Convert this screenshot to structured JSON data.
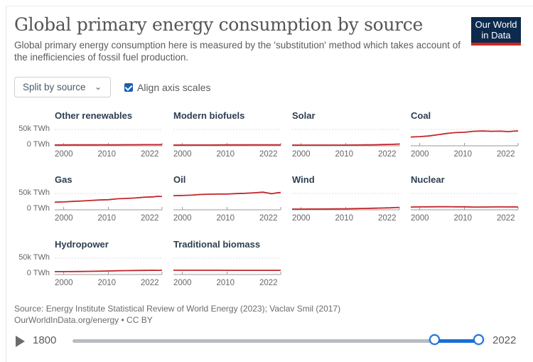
{
  "header": {
    "title": "Global primary energy consumption by source",
    "subtitle": "Global primary energy consumption here is measured by the 'substitution' method which takes account of the inefficiencies of fossil fuel production.",
    "logo_line1": "Our World",
    "logo_line2": "in Data"
  },
  "controls": {
    "split_select": "Split by source",
    "align_label": "Align axis scales",
    "align_checked": true
  },
  "footer": {
    "source": "Source: Energy Institute Statistical Review of World Energy (2023); Vaclav Smil (2017)",
    "license": "OurWorldInData.org/energy • CC BY"
  },
  "timeline": {
    "start_label": "1800",
    "end_label": "2022",
    "range_min": 1800,
    "range_max": 2022,
    "selected_start": 1998,
    "selected_end": 2022
  },
  "colors": {
    "line": "#c2272d",
    "brand": "#0c2a4d",
    "accent": "#1a6fd6"
  },
  "chart_data": {
    "type": "line",
    "title": "Global primary energy consumption by source",
    "unit": "TWh",
    "ylim": [
      0,
      50000
    ],
    "yticks": [
      "0 TWh",
      "50k TWh"
    ],
    "xticks": [
      "2000",
      "2010",
      "2022"
    ],
    "x": [
      1998,
      2000,
      2002,
      2004,
      2006,
      2008,
      2010,
      2012,
      2014,
      2016,
      2018,
      2020,
      2021,
      2022
    ],
    "series": [
      {
        "name": "Other renewables",
        "values": [
          500,
          550,
          600,
          650,
          700,
          800,
          900,
          1000,
          1100,
          1200,
          1300,
          1400,
          1450,
          1500
        ]
      },
      {
        "name": "Modern biofuels",
        "values": [
          100,
          120,
          150,
          200,
          300,
          450,
          600,
          650,
          750,
          800,
          900,
          850,
          950,
          1000
        ]
      },
      {
        "name": "Solar",
        "values": [
          0,
          0,
          0,
          10,
          20,
          50,
          100,
          300,
          600,
          1000,
          1700,
          2300,
          2800,
          3500
        ]
      },
      {
        "name": "Coal",
        "values": [
          26000,
          27000,
          29000,
          33000,
          37000,
          40000,
          41000,
          44000,
          45000,
          44000,
          44500,
          43000,
          44500,
          45000
        ]
      },
      {
        "name": "Gas",
        "values": [
          22000,
          23000,
          24500,
          26000,
          27500,
          29000,
          30000,
          33000,
          34000,
          35500,
          38000,
          39000,
          41000,
          40000
        ]
      },
      {
        "name": "Oil",
        "values": [
          43000,
          43500,
          44500,
          46500,
          47500,
          48000,
          48000,
          49500,
          50500,
          52000,
          54000,
          49000,
          51500,
          53000
        ]
      },
      {
        "name": "Wind",
        "values": [
          50,
          100,
          150,
          250,
          400,
          600,
          1000,
          1500,
          2000,
          2700,
          3500,
          4100,
          4700,
          5400
        ]
      },
      {
        "name": "Nuclear",
        "values": [
          6700,
          7000,
          7200,
          7400,
          7400,
          7300,
          7300,
          6500,
          6600,
          6800,
          7000,
          6900,
          7100,
          6700
        ]
      },
      {
        "name": "Hydropower",
        "values": [
          7000,
          7100,
          7200,
          7500,
          8000,
          8300,
          9000,
          9700,
          10200,
          10600,
          11000,
          11300,
          11100,
          11300
        ]
      },
      {
        "name": "Traditional biomass",
        "values": [
          11300,
          11300,
          11300,
          11300,
          11300,
          11300,
          11200,
          11200,
          11200,
          11100,
          11100,
          11100,
          11100,
          11100
        ]
      }
    ]
  }
}
